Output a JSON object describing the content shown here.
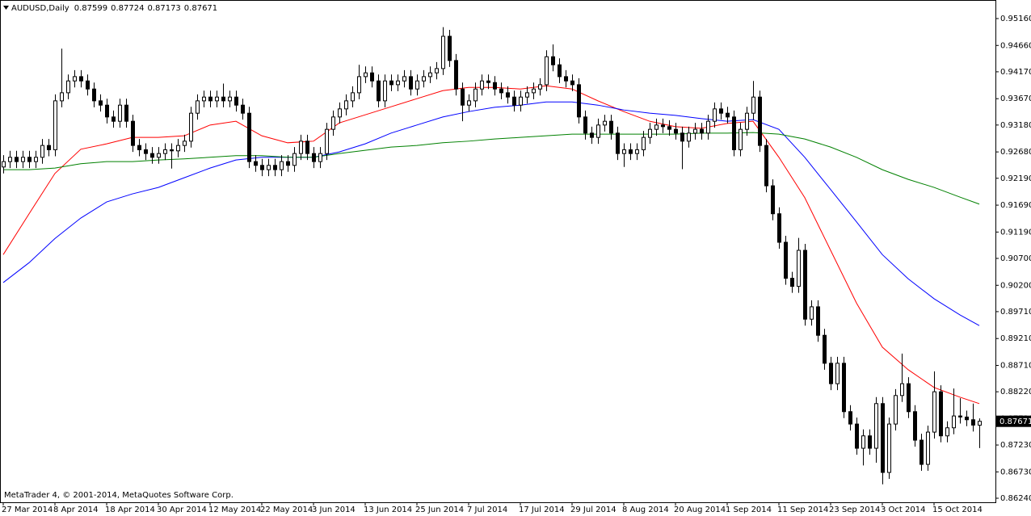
{
  "chart_data": {
    "type": "candlestick",
    "title": "AUDUSD,Daily",
    "copyright": "MetaTrader 4, © 2001-2014, MetaQuotes Software Corp.",
    "categories": [
      "27 Mar 2014",
      null,
      null,
      null,
      null,
      null,
      null,
      null,
      "8 Apr 2014",
      null,
      null,
      null,
      null,
      null,
      null,
      null,
      "18 Apr 2014",
      null,
      null,
      null,
      null,
      null,
      null,
      null,
      "30 Apr 2014",
      null,
      null,
      null,
      null,
      null,
      null,
      null,
      "12 May 2014",
      null,
      null,
      null,
      null,
      null,
      null,
      null,
      "22 May 2014",
      null,
      null,
      null,
      null,
      null,
      null,
      null,
      "3 Jun 2014",
      null,
      null,
      null,
      null,
      null,
      null,
      null,
      "13 Jun 2014",
      null,
      null,
      null,
      null,
      null,
      null,
      null,
      "25 Jun 2014",
      null,
      null,
      null,
      null,
      null,
      null,
      null,
      "7 Jul 2014",
      null,
      null,
      null,
      null,
      null,
      null,
      null,
      "17 Jul 2014",
      null,
      null,
      null,
      null,
      null,
      null,
      null,
      "29 Jul 2014",
      null,
      null,
      null,
      null,
      null,
      null,
      null,
      "8 Aug 2014",
      null,
      null,
      null,
      null,
      null,
      null,
      null,
      "20 Aug 2014",
      null,
      null,
      null,
      null,
      null,
      null,
      null,
      "1 Sep 2014",
      null,
      null,
      null,
      null,
      null,
      null,
      null,
      "11 Sep 2014",
      null,
      null,
      null,
      null,
      null,
      null,
      null,
      "23 Sep 2014",
      null,
      null,
      null,
      null,
      null,
      null,
      null,
      "3 Oct 2014",
      null,
      null,
      null,
      null,
      null,
      null,
      null,
      "15 Oct 2014",
      null,
      null,
      null,
      null,
      null,
      null,
      null
    ],
    "open": [
      0.924,
      0.925,
      0.9258,
      0.925,
      0.9258,
      0.925,
      0.9258,
      0.928,
      0.9272,
      0.9363,
      0.9378,
      0.94,
      0.9408,
      0.94,
      0.9385,
      0.9363,
      0.9355,
      0.9333,
      0.9325,
      0.9355,
      0.9325,
      0.928,
      0.9272,
      0.9265,
      0.9258,
      0.9265,
      0.9272,
      0.927,
      0.928,
      0.9288,
      0.934,
      0.9363,
      0.937,
      0.9363,
      0.937,
      0.9363,
      0.937,
      0.9355,
      0.934,
      0.925,
      0.9243,
      0.9235,
      0.9243,
      0.9235,
      0.925,
      0.9243,
      0.9265,
      0.9288,
      0.9265,
      0.925,
      0.9265,
      0.931,
      0.9333,
      0.9348,
      0.9363,
      0.9378,
      0.9408,
      0.9415,
      0.94,
      0.9363,
      0.94,
      0.9393,
      0.94,
      0.9408,
      0.9385,
      0.94,
      0.9408,
      0.9415,
      0.9423,
      0.9483,
      0.9438,
      0.9385,
      0.9355,
      0.9363,
      0.9385,
      0.94,
      0.9397,
      0.9385,
      0.9378,
      0.937,
      0.9355,
      0.937,
      0.9378,
      0.9385,
      0.9393,
      0.9445,
      0.943,
      0.9408,
      0.94,
      0.9393,
      0.9333,
      0.9303,
      0.9295,
      0.9318,
      0.9325,
      0.9303,
      0.9265,
      0.9272,
      0.9265,
      0.9272,
      0.9295,
      0.931,
      0.9318,
      0.9315,
      0.931,
      0.9303,
      0.9288,
      0.9303,
      0.931,
      0.9303,
      0.9325,
      0.9348,
      0.934,
      0.9333,
      0.9272,
      0.931,
      0.934,
      0.937,
      0.928,
      0.9205,
      0.9153,
      0.91,
      0.9033,
      0.9018,
      0.9085,
      0.8957,
      0.898,
      0.8927,
      0.8875,
      0.8837,
      0.8875,
      0.8785,
      0.8762,
      0.8717,
      0.874,
      0.8717,
      0.88,
      0.8672,
      0.8762,
      0.8815,
      0.8837,
      0.8785,
      0.8732,
      0.8687,
      0.8747,
      0.8822,
      0.874,
      0.8755,
      0.8777,
      0.8775,
      0.877,
      0.87599
    ],
    "high": [
      0.9262,
      0.927,
      0.927,
      0.927,
      0.927,
      0.927,
      0.9292,
      0.9292,
      0.9375,
      0.946,
      0.9412,
      0.942,
      0.942,
      0.9412,
      0.9397,
      0.9375,
      0.9367,
      0.9345,
      0.9367,
      0.9367,
      0.9337,
      0.9292,
      0.9284,
      0.9277,
      0.9277,
      0.9284,
      0.9284,
      0.9292,
      0.93,
      0.9352,
      0.9375,
      0.9382,
      0.9382,
      0.9382,
      0.9395,
      0.9382,
      0.9382,
      0.9367,
      0.9352,
      0.9262,
      0.9255,
      0.9255,
      0.9255,
      0.9262,
      0.9262,
      0.9277,
      0.93,
      0.93,
      0.9277,
      0.9277,
      0.9322,
      0.9345,
      0.936,
      0.9375,
      0.939,
      0.943,
      0.9427,
      0.9427,
      0.9412,
      0.9412,
      0.9412,
      0.9412,
      0.942,
      0.942,
      0.9412,
      0.942,
      0.9427,
      0.9435,
      0.95,
      0.9495,
      0.945,
      0.9397,
      0.9375,
      0.9397,
      0.9412,
      0.9412,
      0.9409,
      0.9397,
      0.939,
      0.9382,
      0.9382,
      0.939,
      0.9397,
      0.9405,
      0.9457,
      0.9468,
      0.9442,
      0.942,
      0.9412,
      0.9405,
      0.9345,
      0.9315,
      0.933,
      0.9337,
      0.9337,
      0.9315,
      0.9284,
      0.9284,
      0.9284,
      0.9307,
      0.9322,
      0.933,
      0.933,
      0.9327,
      0.9322,
      0.9315,
      0.9315,
      0.9322,
      0.9322,
      0.9337,
      0.936,
      0.936,
      0.9352,
      0.9345,
      0.9322,
      0.9352,
      0.94,
      0.9382,
      0.9292,
      0.9217,
      0.9165,
      0.9112,
      0.9045,
      0.9108,
      0.9097,
      0.8992,
      0.8992,
      0.8939,
      0.8887,
      0.8887,
      0.8887,
      0.8797,
      0.8774,
      0.8752,
      0.8752,
      0.8812,
      0.8812,
      0.8774,
      0.8827,
      0.8893,
      0.8849,
      0.8797,
      0.8744,
      0.8759,
      0.886,
      0.8834,
      0.8767,
      0.8828,
      0.881,
      0.8787,
      0.88,
      0.87724
    ],
    "low": [
      0.9228,
      0.9238,
      0.9238,
      0.9238,
      0.9238,
      0.9238,
      0.9246,
      0.926,
      0.926,
      0.9351,
      0.9366,
      0.9388,
      0.9388,
      0.9373,
      0.9351,
      0.9343,
      0.9321,
      0.9313,
      0.9313,
      0.9313,
      0.9268,
      0.926,
      0.9253,
      0.9246,
      0.9246,
      0.9253,
      0.9237,
      0.9258,
      0.9268,
      0.9276,
      0.9328,
      0.9351,
      0.9351,
      0.9351,
      0.9351,
      0.9351,
      0.9343,
      0.9328,
      0.9238,
      0.9231,
      0.9223,
      0.9223,
      0.9223,
      0.9223,
      0.9231,
      0.9231,
      0.9253,
      0.9253,
      0.9238,
      0.9238,
      0.9253,
      0.9298,
      0.9321,
      0.9336,
      0.9351,
      0.9366,
      0.9396,
      0.9388,
      0.9351,
      0.9351,
      0.9381,
      0.9381,
      0.9388,
      0.9373,
      0.9373,
      0.9388,
      0.9396,
      0.9403,
      0.9411,
      0.9426,
      0.9373,
      0.9325,
      0.9343,
      0.9351,
      0.9373,
      0.9385,
      0.9373,
      0.9366,
      0.9358,
      0.9343,
      0.9343,
      0.9358,
      0.9366,
      0.9373,
      0.9381,
      0.9418,
      0.9396,
      0.9388,
      0.9381,
      0.9321,
      0.9291,
      0.9283,
      0.9283,
      0.9306,
      0.9291,
      0.9253,
      0.924,
      0.9253,
      0.9253,
      0.926,
      0.9283,
      0.9298,
      0.9303,
      0.9298,
      0.9291,
      0.9236,
      0.9276,
      0.9291,
      0.9291,
      0.9291,
      0.9313,
      0.9328,
      0.9321,
      0.926,
      0.926,
      0.9298,
      0.9328,
      0.9268,
      0.9193,
      0.9141,
      0.9088,
      0.9021,
      0.9006,
      0.9006,
      0.8945,
      0.8945,
      0.8915,
      0.8863,
      0.8825,
      0.8825,
      0.8773,
      0.875,
      0.8705,
      0.8685,
      0.8705,
      0.869,
      0.865,
      0.866,
      0.875,
      0.8803,
      0.8773,
      0.872,
      0.8675,
      0.8675,
      0.8735,
      0.8728,
      0.8728,
      0.8743,
      0.8763,
      0.8758,
      0.8748,
      0.87173
    ],
    "close": [
      0.925,
      0.9258,
      0.925,
      0.9258,
      0.925,
      0.9258,
      0.928,
      0.9272,
      0.9363,
      0.9378,
      0.94,
      0.9408,
      0.94,
      0.9385,
      0.9363,
      0.9355,
      0.9333,
      0.9325,
      0.9355,
      0.9325,
      0.928,
      0.9272,
      0.9265,
      0.9258,
      0.9265,
      0.9272,
      0.927,
      0.928,
      0.9288,
      0.934,
      0.9363,
      0.937,
      0.9363,
      0.937,
      0.9363,
      0.937,
      0.9355,
      0.934,
      0.925,
      0.9243,
      0.9235,
      0.9243,
      0.9235,
      0.925,
      0.9243,
      0.9265,
      0.9288,
      0.9265,
      0.925,
      0.9265,
      0.931,
      0.9333,
      0.9348,
      0.9363,
      0.9378,
      0.9408,
      0.9415,
      0.94,
      0.9363,
      0.94,
      0.9393,
      0.94,
      0.9408,
      0.9385,
      0.94,
      0.9408,
      0.9415,
      0.9423,
      0.9483,
      0.9438,
      0.9385,
      0.9355,
      0.9363,
      0.9385,
      0.94,
      0.9397,
      0.9385,
      0.9378,
      0.937,
      0.9355,
      0.937,
      0.9378,
      0.9385,
      0.9393,
      0.9445,
      0.943,
      0.9408,
      0.94,
      0.9393,
      0.9333,
      0.9303,
      0.9295,
      0.9318,
      0.9325,
      0.9303,
      0.9265,
      0.9272,
      0.9265,
      0.9272,
      0.9295,
      0.931,
      0.9318,
      0.9315,
      0.931,
      0.9303,
      0.9288,
      0.9303,
      0.931,
      0.9303,
      0.9325,
      0.9348,
      0.934,
      0.9333,
      0.9272,
      0.931,
      0.934,
      0.937,
      0.928,
      0.9205,
      0.9153,
      0.91,
      0.9033,
      0.9018,
      0.9085,
      0.8957,
      0.898,
      0.8927,
      0.8875,
      0.8837,
      0.8875,
      0.8785,
      0.8762,
      0.8717,
      0.874,
      0.8717,
      0.88,
      0.8672,
      0.8762,
      0.8815,
      0.8837,
      0.8785,
      0.8732,
      0.8687,
      0.8747,
      0.8822,
      0.874,
      0.8755,
      0.8777,
      0.8775,
      0.877,
      0.876,
      0.87671
    ],
    "series": [
      {
        "color": "#ff0000",
        "x": [
          0,
          4,
          8,
          12,
          16,
          20,
          24,
          28,
          32,
          36,
          40,
          44,
          48,
          52,
          56,
          60,
          64,
          68,
          72,
          76,
          80,
          84,
          88,
          92,
          96,
          100,
          104,
          108,
          112,
          116,
          120,
          124,
          128,
          132,
          136,
          140,
          144,
          148,
          151
        ],
        "values": [
          0.9077,
          0.9153,
          0.9228,
          0.9273,
          0.9283,
          0.9295,
          0.9295,
          0.9298,
          0.9318,
          0.9325,
          0.9298,
          0.9285,
          0.9288,
          0.9322,
          0.9337,
          0.9352,
          0.9367,
          0.9382,
          0.9388,
          0.9388,
          0.9385,
          0.9391,
          0.9385,
          0.9363,
          0.9343,
          0.9325,
          0.9315,
          0.9312,
          0.9321,
          0.9325,
          0.9258,
          0.9183,
          0.9085,
          0.8987,
          0.8905,
          0.8863,
          0.883,
          0.8812,
          0.88
        ]
      },
      {
        "color": "#0000ff",
        "x": [
          0,
          4,
          8,
          12,
          16,
          20,
          24,
          28,
          32,
          36,
          40,
          44,
          48,
          52,
          56,
          60,
          64,
          68,
          72,
          76,
          80,
          84,
          88,
          92,
          96,
          100,
          104,
          108,
          112,
          116,
          120,
          124,
          128,
          132,
          136,
          140,
          144,
          148,
          151
        ],
        "values": [
          0.9025,
          0.9062,
          0.9107,
          0.9145,
          0.9175,
          0.919,
          0.9202,
          0.922,
          0.9238,
          0.9253,
          0.9258,
          0.9258,
          0.9258,
          0.9268,
          0.9283,
          0.9303,
          0.9318,
          0.9333,
          0.9343,
          0.9351,
          0.9355,
          0.9361,
          0.9361,
          0.9355,
          0.9346,
          0.934,
          0.9336,
          0.933,
          0.9325,
          0.9328,
          0.931,
          0.9258,
          0.9198,
          0.9138,
          0.9077,
          0.9032,
          0.8995,
          0.8965,
          0.8945
        ]
      },
      {
        "color": "#008000",
        "x": [
          0,
          4,
          8,
          12,
          16,
          20,
          24,
          28,
          32,
          36,
          40,
          44,
          48,
          52,
          56,
          60,
          64,
          68,
          72,
          76,
          80,
          84,
          88,
          92,
          96,
          100,
          104,
          108,
          112,
          116,
          120,
          124,
          128,
          132,
          136,
          140,
          144,
          148,
          151
        ],
        "values": [
          0.9235,
          0.9235,
          0.9238,
          0.9246,
          0.925,
          0.925,
          0.9253,
          0.9255,
          0.9258,
          0.9261,
          0.9261,
          0.9258,
          0.9258,
          0.9265,
          0.9271,
          0.9277,
          0.928,
          0.9285,
          0.9288,
          0.9292,
          0.9295,
          0.9298,
          0.9301,
          0.9301,
          0.9301,
          0.9301,
          0.9301,
          0.9303,
          0.9303,
          0.9304,
          0.9301,
          0.9292,
          0.9277,
          0.9258,
          0.9235,
          0.9217,
          0.9202,
          0.9184,
          0.9171
        ]
      }
    ],
    "ylim": [
      0.86165,
      0.95505
    ],
    "yticks": [
      {
        "value": 0.9516,
        "label": "0.95160"
      },
      {
        "value": 0.9466,
        "label": "0.94660"
      },
      {
        "value": 0.9417,
        "label": "0.94170"
      },
      {
        "value": 0.9367,
        "label": "0.93670"
      },
      {
        "value": 0.9318,
        "label": "0.93180"
      },
      {
        "value": 0.9268,
        "label": "0.92680"
      },
      {
        "value": 0.9219,
        "label": "0.92190"
      },
      {
        "value": 0.9169,
        "label": "0.91690"
      },
      {
        "value": 0.9119,
        "label": "0.91190"
      },
      {
        "value": 0.907,
        "label": "0.90700"
      },
      {
        "value": 0.902,
        "label": "0.90200"
      },
      {
        "value": 0.8971,
        "label": "0.89710"
      },
      {
        "value": 0.8921,
        "label": "0.89210"
      },
      {
        "value": 0.8871,
        "label": "0.88710"
      },
      {
        "value": 0.8822,
        "label": "0.88220"
      },
      {
        "value": 0.8772,
        "label": "0.87720"
      },
      {
        "value": 0.8723,
        "label": "0.87230"
      },
      {
        "value": 0.8673,
        "label": "0.86730"
      },
      {
        "value": 0.8624,
        "label": "0.86240"
      }
    ],
    "bull_color": "#ffffff",
    "bear_color": "#000000"
  }
}
